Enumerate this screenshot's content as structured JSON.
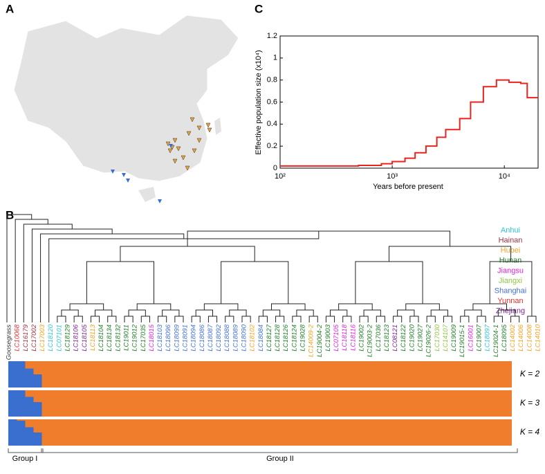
{
  "panels": {
    "a": "A",
    "b": "B",
    "c": "C"
  },
  "chart_data": {
    "type": "line",
    "ylabel": "Effective population size (x10⁴)",
    "xlabel": "Years before present",
    "log_x": true,
    "xlim": [
      100,
      20000
    ],
    "xticks": [
      {
        "value": 100,
        "label": "10²"
      },
      {
        "value": 1000,
        "label": "10³"
      },
      {
        "value": 10000,
        "label": "10⁴"
      }
    ],
    "ylim": [
      0,
      1.2
    ],
    "yticks": [
      0,
      0.2,
      0.4,
      0.6,
      0.8,
      1,
      1.2
    ],
    "step": true,
    "series": [
      {
        "color": "#e8231e",
        "x": [
          100,
          500,
          800,
          1000,
          1300,
          1600,
          2000,
          2500,
          3000,
          4000,
          5000,
          6500,
          8500,
          11000,
          14000,
          16000,
          20000
        ],
        "values": [
          0.02,
          0.025,
          0.04,
          0.06,
          0.09,
          0.14,
          0.2,
          0.28,
          0.35,
          0.45,
          0.6,
          0.74,
          0.8,
          0.78,
          0.77,
          0.64,
          0.64
        ]
      }
    ]
  },
  "legend": [
    {
      "name": "Anhui",
      "color": "#2cc7d9"
    },
    {
      "name": "Hainan",
      "color": "#a3303c"
    },
    {
      "name": "Hubei",
      "color": "#f0a31e"
    },
    {
      "name": "Hunan",
      "color": "#1f7d25"
    },
    {
      "name": "Jiangsu",
      "color": "#e21fe0"
    },
    {
      "name": "Jiangxi",
      "color": "#8fc73c"
    },
    {
      "name": "Shanghai",
      "color": "#4271d3"
    },
    {
      "name": "Yunnan",
      "color": "#e3302f"
    },
    {
      "name": "Zhejiang",
      "color": "#7b2393"
    }
  ],
  "leaves": [
    {
      "label": "Goosegrass",
      "color": "#333333"
    },
    {
      "label": "LC10068",
      "color": "#e3302f"
    },
    {
      "label": "LC16179",
      "color": "#a3303c"
    },
    {
      "label": "LC17002",
      "color": "#a3303c"
    },
    {
      "label": "LC17003",
      "color": "#f0a31e"
    },
    {
      "label": "LC18120",
      "color": "#2cc7d9"
    },
    {
      "label": "LC07101",
      "color": "#2cc7d9"
    },
    {
      "label": "LC18129",
      "color": "#1f7d25"
    },
    {
      "label": "LC18106",
      "color": "#7b2393"
    },
    {
      "label": "LC18105",
      "color": "#7b2393"
    },
    {
      "label": "LC18113",
      "color": "#f0a31e"
    },
    {
      "label": "LC18104",
      "color": "#1f7d25"
    },
    {
      "label": "LC18134",
      "color": "#1f7d25"
    },
    {
      "label": "LC18132",
      "color": "#1f7d25"
    },
    {
      "label": "LC19011",
      "color": "#1f7d25"
    },
    {
      "label": "LC19012",
      "color": "#1f7d25"
    },
    {
      "label": "LC17035",
      "color": "#1f7d25"
    },
    {
      "label": "LC18015",
      "color": "#e21fe0"
    },
    {
      "label": "LC18103",
      "color": "#4271d3"
    },
    {
      "label": "LC18096",
      "color": "#4271d3"
    },
    {
      "label": "LC18099",
      "color": "#4271d3"
    },
    {
      "label": "LC18091",
      "color": "#4271d3"
    },
    {
      "label": "LC18094",
      "color": "#4271d3"
    },
    {
      "label": "LC18086",
      "color": "#4271d3"
    },
    {
      "label": "LC18087",
      "color": "#4271d3"
    },
    {
      "label": "LC18092",
      "color": "#4271d3"
    },
    {
      "label": "LC18088",
      "color": "#4271d3"
    },
    {
      "label": "LC18089",
      "color": "#4271d3"
    },
    {
      "label": "LC18090",
      "color": "#4271d3"
    },
    {
      "label": "LC18102",
      "color": "#f0a31e"
    },
    {
      "label": "LC18084",
      "color": "#4271d3"
    },
    {
      "label": "LC18127",
      "color": "#1f7d25"
    },
    {
      "label": "LC18128",
      "color": "#1f7d25"
    },
    {
      "label": "LC18126",
      "color": "#1f7d25"
    },
    {
      "label": "LC18124",
      "color": "#1f7d25"
    },
    {
      "label": "LC19028",
      "color": "#1f7d25"
    },
    {
      "label": "LC14009-2",
      "color": "#f0a31e"
    },
    {
      "label": "LC19004-2",
      "color": "#1f7d25"
    },
    {
      "label": "LC19003",
      "color": "#1f7d25"
    },
    {
      "label": "LC07105",
      "color": "#e21fe0"
    },
    {
      "label": "LC18118",
      "color": "#e21fe0"
    },
    {
      "label": "LC18116",
      "color": "#e21fe0"
    },
    {
      "label": "LC19002",
      "color": "#1f7d25"
    },
    {
      "label": "LC19003-2",
      "color": "#1f7d25"
    },
    {
      "label": "LC17036",
      "color": "#1f7d25"
    },
    {
      "label": "LC18123",
      "color": "#1f7d25"
    },
    {
      "label": "LC08121",
      "color": "#7b2393"
    },
    {
      "label": "LC18122",
      "color": "#1f7d25"
    },
    {
      "label": "LC19020",
      "color": "#1f7d25"
    },
    {
      "label": "LC19027",
      "color": "#1f7d25"
    },
    {
      "label": "LC19026-2",
      "color": "#1f7d25"
    },
    {
      "label": "LC17030",
      "color": "#8fc73c"
    },
    {
      "label": "LC14107",
      "color": "#8fc73c"
    },
    {
      "label": "LC19009",
      "color": "#1f7d25"
    },
    {
      "label": "LC19015-1",
      "color": "#1f7d25"
    },
    {
      "label": "LC16001",
      "color": "#e21fe0"
    },
    {
      "label": "LC19007",
      "color": "#1f7d25"
    },
    {
      "label": "LC18097",
      "color": "#2cc7d9"
    },
    {
      "label": "LC19024-1",
      "color": "#1f7d25"
    },
    {
      "label": "LC18095",
      "color": "#1f7d25"
    },
    {
      "label": "LC14002",
      "color": "#f0a31e"
    },
    {
      "label": "LC14006",
      "color": "#f0a31e"
    },
    {
      "label": "LC14008",
      "color": "#f0a31e"
    },
    {
      "label": "LC14010",
      "color": "#f0a31e"
    }
  ],
  "structure": {
    "colors": [
      "#3a6fd0",
      "#ef7d2b"
    ],
    "rows": [
      {
        "label": "K = 2",
        "blue": [
          1,
          1,
          0.72,
          0.5
        ]
      },
      {
        "label": "K = 3",
        "blue": [
          1,
          1,
          0.75,
          0.55
        ]
      },
      {
        "label": "K = 4",
        "blue": [
          1,
          0.95,
          0.7,
          0.5
        ]
      }
    ]
  },
  "groups": [
    "Group I",
    "Group II"
  ]
}
